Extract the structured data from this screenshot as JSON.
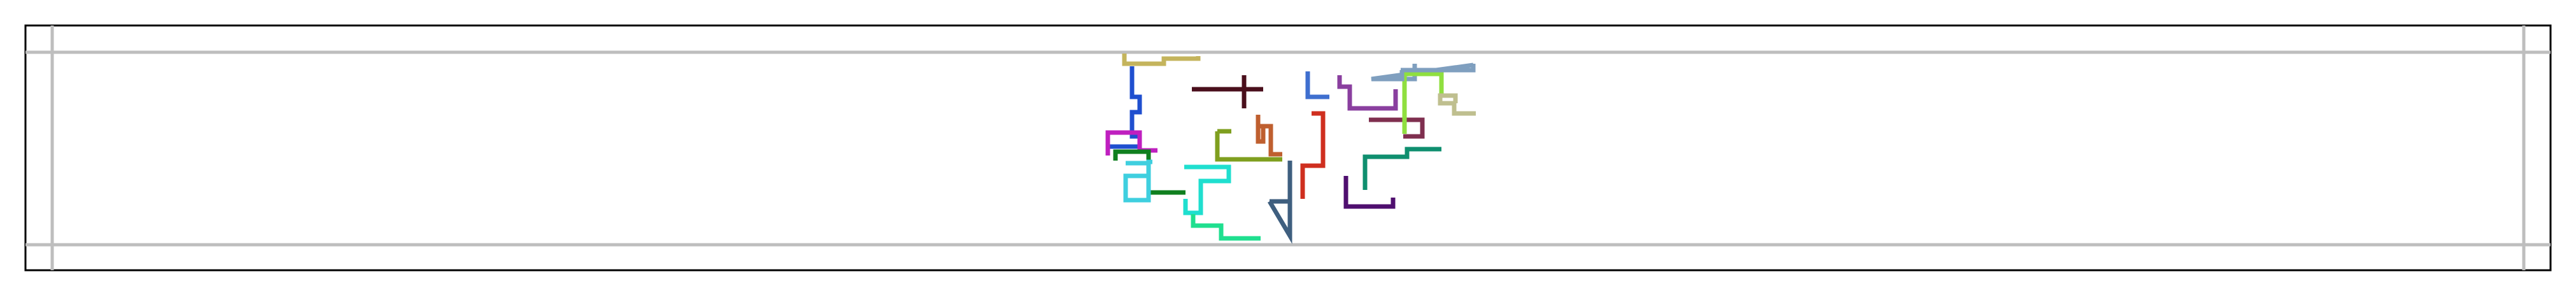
{
  "frame": {
    "border_color": "#000000",
    "guide_color": "#bebebe"
  },
  "paths": [
    {
      "name": "path-olive-top",
      "color": "#c4b45c",
      "points": [
        [
          0,
          0
        ],
        [
          0,
          0
        ]
      ]
    },
    {
      "name": "path-dark-maroon-cross",
      "color": "#4a0f1c"
    },
    {
      "name": "path-steel-blue-top",
      "color": "#7f9fbf"
    },
    {
      "name": "path-royal-blue-left",
      "color": "#1f4fcf"
    },
    {
      "name": "path-mid-blue",
      "color": "#3f6fcf"
    },
    {
      "name": "path-purple-small",
      "color": "#8a3f9f"
    },
    {
      "name": "path-lime",
      "color": "#8fdf3f"
    },
    {
      "name": "path-khaki",
      "color": "#bfbf8f"
    },
    {
      "name": "path-wine",
      "color": "#7f2f4f"
    },
    {
      "name": "path-magenta",
      "color": "#bf1fbf"
    },
    {
      "name": "path-olive-green",
      "color": "#7f9f1f"
    },
    {
      "name": "path-sienna",
      "color": "#bf5f2f"
    },
    {
      "name": "path-red",
      "color": "#cf2f1f"
    },
    {
      "name": "path-teal-green",
      "color": "#0f8f6f"
    },
    {
      "name": "path-green",
      "color": "#0f7f1f"
    },
    {
      "name": "path-cyan-light",
      "color": "#3fcfdf"
    },
    {
      "name": "path-aqua",
      "color": "#1fdfcf"
    },
    {
      "name": "path-slate",
      "color": "#3f5f7f"
    },
    {
      "name": "path-indigo",
      "color": "#4f0f6f"
    },
    {
      "name": "path-spring-green",
      "color": "#1fdf8f"
    }
  ]
}
